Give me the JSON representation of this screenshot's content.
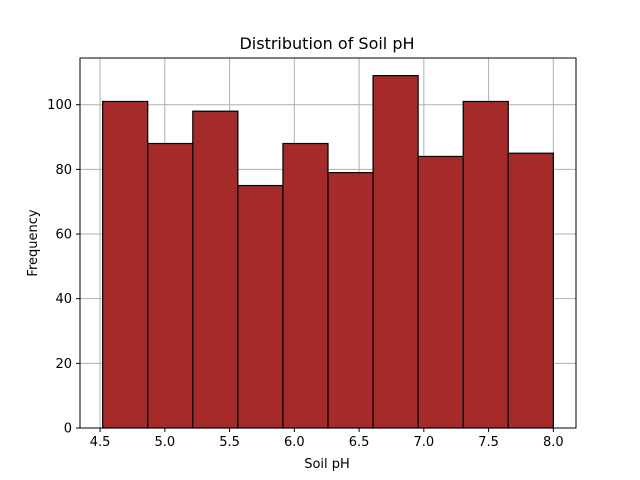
{
  "chart_data": {
    "type": "bar",
    "title": "Distribution of Soil pH",
    "xlabel": "Soil pH",
    "ylabel": "Frequency",
    "bin_edges": [
      4.52,
      4.868,
      5.216,
      5.564,
      5.912,
      6.26,
      6.608,
      6.956,
      7.304,
      7.652,
      8.0
    ],
    "values": [
      101,
      88,
      98,
      75,
      88,
      79,
      109,
      84,
      101,
      85
    ],
    "xlim": [
      4.345,
      8.175
    ],
    "ylim": [
      0,
      114.45
    ],
    "xticks": [
      4.5,
      5.0,
      5.5,
      6.0,
      6.5,
      7.0,
      7.5,
      8.0
    ],
    "xtick_labels": [
      "4.5",
      "5.0",
      "5.5",
      "6.0",
      "6.5",
      "7.0",
      "7.5",
      "8.0"
    ],
    "yticks": [
      0,
      20,
      40,
      60,
      80,
      100
    ],
    "ytick_labels": [
      "0",
      "20",
      "40",
      "60",
      "80",
      "100"
    ],
    "grid": true,
    "colors": {
      "bar": "#a52a2a",
      "edge": "#000000",
      "grid": "#b0b0b0"
    }
  }
}
